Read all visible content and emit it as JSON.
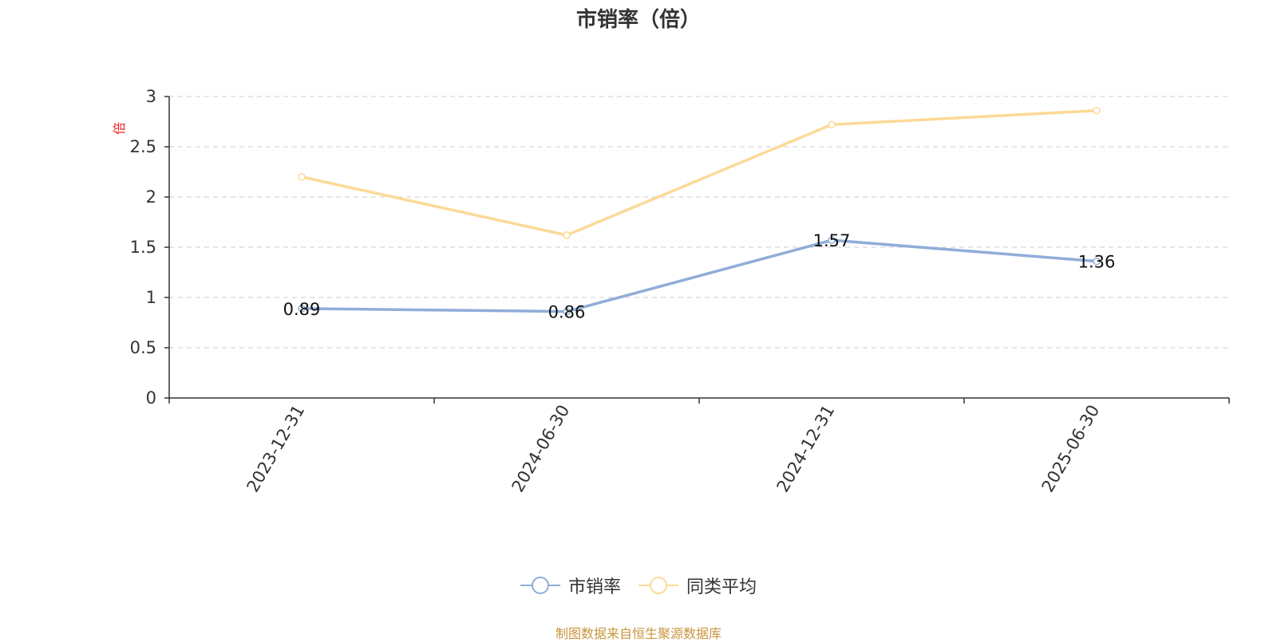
{
  "title": "市销率（倍）",
  "source_text": "制图数据来自恒生聚源数据库",
  "colors": {
    "series_ps": "#8fadd8",
    "series_avg": "#fcd997",
    "source_text": "#c8963e",
    "unit_label": "#ee2222"
  },
  "legend": {
    "items": [
      {
        "label": "市销率",
        "color": "#8fadd8"
      },
      {
        "label": "同类平均",
        "color": "#fcd997"
      }
    ]
  },
  "chart_data": {
    "type": "line",
    "title": "市销率（倍）",
    "ylabel": "倍",
    "xlabel": "",
    "categories": [
      "2023-12-31",
      "2024-06-30",
      "2024-12-31",
      "2025-06-30"
    ],
    "ylim": [
      0,
      3
    ],
    "yticks": [
      0,
      0.5,
      1,
      1.5,
      2,
      2.5,
      3
    ],
    "ytick_labels": [
      "0",
      "0.5",
      "1",
      "1.5",
      "2",
      "2.5",
      "3"
    ],
    "grid": true,
    "legend_position": "bottom-center",
    "series": [
      {
        "name": "市销率",
        "values": [
          0.89,
          0.86,
          1.57,
          1.36
        ],
        "data_labels": [
          "0.89",
          "0.86",
          "1.57",
          "1.36"
        ],
        "color": "#8fadd8"
      },
      {
        "name": "同类平均",
        "values": [
          2.2,
          1.62,
          2.72,
          2.86
        ],
        "color": "#fcd997"
      }
    ]
  }
}
